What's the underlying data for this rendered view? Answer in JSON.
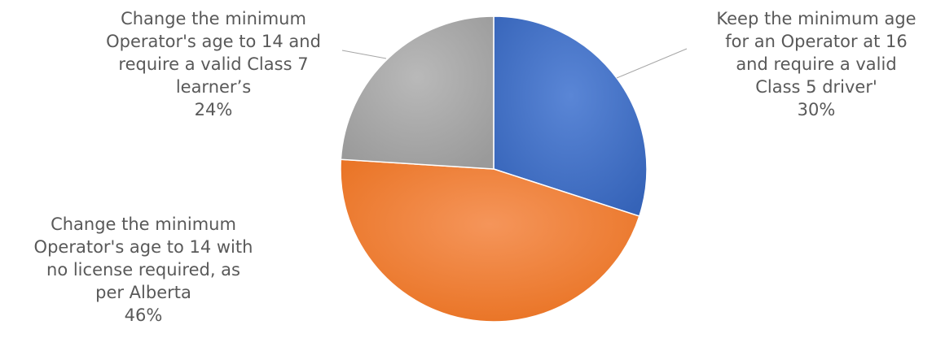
{
  "chart_data": {
    "type": "pie",
    "title": "",
    "start_angle_deg": 0,
    "direction": "clockwise",
    "slices": [
      {
        "label_lines": [
          "Keep the minimum age",
          "for an Operator at 16",
          "and require a valid",
          "Class 5 driver'"
        ],
        "value": 30,
        "value_label": "30%",
        "color": "#4472c4"
      },
      {
        "label_lines": [
          "Change the minimum",
          "Operator's age to 14 with",
          "no license required, as",
          "per Alberta"
        ],
        "value": 46,
        "value_label": "46%",
        "color": "#ed7d31"
      },
      {
        "label_lines": [
          "Change the minimum",
          "Operator's age to 14 and",
          "require a valid Class 7",
          "learner’s"
        ],
        "value": 24,
        "value_label": "24%",
        "color": "#a5a5a5"
      }
    ]
  }
}
